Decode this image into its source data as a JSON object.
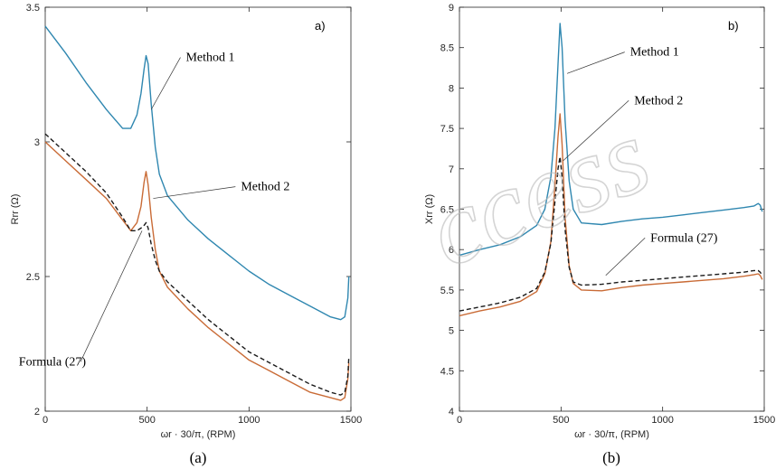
{
  "watermark": "ccess",
  "chart_data": [
    {
      "type": "line",
      "panel_tag": "a)",
      "caption": "(a)",
      "xlabel": "ωr · 30/π, (RPM)",
      "ylabel": "Rrr (Ω)",
      "xlim": [
        0,
        1500
      ],
      "ylim": [
        2,
        3.5
      ],
      "x_ticks": [
        0,
        500,
        1000,
        1500
      ],
      "y_ticks": [
        2,
        2.5,
        3,
        3.5
      ],
      "grid": false,
      "series": [
        {
          "name": "Method 1",
          "color": "#2f87b0",
          "dash": "solid",
          "points": [
            [
              0,
              3.43
            ],
            [
              100,
              3.33
            ],
            [
              200,
              3.22
            ],
            [
              300,
              3.12
            ],
            [
              380,
              3.05
            ],
            [
              420,
              3.05
            ],
            [
              450,
              3.1
            ],
            [
              470,
              3.18
            ],
            [
              485,
              3.27
            ],
            [
              495,
              3.32
            ],
            [
              505,
              3.29
            ],
            [
              520,
              3.14
            ],
            [
              540,
              2.98
            ],
            [
              560,
              2.88
            ],
            [
              600,
              2.8
            ],
            [
              700,
              2.71
            ],
            [
              800,
              2.64
            ],
            [
              900,
              2.58
            ],
            [
              1000,
              2.52
            ],
            [
              1100,
              2.47
            ],
            [
              1200,
              2.43
            ],
            [
              1300,
              2.39
            ],
            [
              1400,
              2.35
            ],
            [
              1450,
              2.34
            ],
            [
              1470,
              2.35
            ],
            [
              1485,
              2.42
            ],
            [
              1490,
              2.5
            ]
          ]
        },
        {
          "name": "Method 2",
          "color": "#c96b36",
          "dash": "solid",
          "points": [
            [
              0,
              3.0
            ],
            [
              100,
              2.93
            ],
            [
              200,
              2.86
            ],
            [
              300,
              2.79
            ],
            [
              380,
              2.71
            ],
            [
              420,
              2.67
            ],
            [
              450,
              2.7
            ],
            [
              470,
              2.76
            ],
            [
              485,
              2.85
            ],
            [
              495,
              2.89
            ],
            [
              505,
              2.84
            ],
            [
              520,
              2.72
            ],
            [
              540,
              2.6
            ],
            [
              560,
              2.52
            ],
            [
              600,
              2.46
            ],
            [
              700,
              2.38
            ],
            [
              800,
              2.31
            ],
            [
              900,
              2.25
            ],
            [
              1000,
              2.19
            ],
            [
              1100,
              2.15
            ],
            [
              1200,
              2.11
            ],
            [
              1300,
              2.07
            ],
            [
              1400,
              2.05
            ],
            [
              1450,
              2.04
            ],
            [
              1470,
              2.05
            ],
            [
              1485,
              2.12
            ],
            [
              1490,
              2.18
            ]
          ]
        },
        {
          "name": "Formula (27)",
          "color": "#1a1a1a",
          "dash": "dashed",
          "points": [
            [
              0,
              3.03
            ],
            [
              100,
              2.96
            ],
            [
              200,
              2.89
            ],
            [
              300,
              2.81
            ],
            [
              380,
              2.72
            ],
            [
              420,
              2.67
            ],
            [
              450,
              2.67
            ],
            [
              470,
              2.68
            ],
            [
              485,
              2.69
            ],
            [
              495,
              2.7
            ],
            [
              505,
              2.68
            ],
            [
              520,
              2.62
            ],
            [
              540,
              2.56
            ],
            [
              560,
              2.52
            ],
            [
              600,
              2.48
            ],
            [
              700,
              2.41
            ],
            [
              800,
              2.34
            ],
            [
              900,
              2.28
            ],
            [
              1000,
              2.22
            ],
            [
              1100,
              2.18
            ],
            [
              1200,
              2.14
            ],
            [
              1300,
              2.1
            ],
            [
              1400,
              2.07
            ],
            [
              1450,
              2.06
            ],
            [
              1470,
              2.07
            ],
            [
              1485,
              2.13
            ],
            [
              1490,
              2.2
            ]
          ]
        }
      ],
      "annotations": [
        {
          "text": "Method 1",
          "target": [
            520,
            3.12
          ],
          "text_at": [
            690,
            3.3
          ]
        },
        {
          "text": "Method 2",
          "target": [
            530,
            2.79
          ],
          "text_at": [
            960,
            2.82
          ]
        },
        {
          "text": "Formula (27)",
          "target": [
            475,
            2.67
          ],
          "text_at": [
            200,
            2.17
          ]
        }
      ]
    },
    {
      "type": "line",
      "panel_tag": "b)",
      "caption": "(b)",
      "xlabel": "ωr · 30/π, (RPM)",
      "ylabel": "Xrr (Ω)",
      "xlim": [
        0,
        1500
      ],
      "ylim": [
        4,
        9
      ],
      "x_ticks": [
        0,
        500,
        1000,
        1500
      ],
      "y_ticks": [
        4,
        4.5,
        5,
        5.5,
        6,
        6.5,
        7,
        7.5,
        8,
        8.5,
        9
      ],
      "grid": false,
      "series": [
        {
          "name": "Method 1",
          "color": "#2f87b0",
          "dash": "solid",
          "points": [
            [
              0,
              5.93
            ],
            [
              100,
              6.0
            ],
            [
              200,
              6.06
            ],
            [
              300,
              6.16
            ],
            [
              380,
              6.3
            ],
            [
              420,
              6.5
            ],
            [
              450,
              6.9
            ],
            [
              470,
              7.5
            ],
            [
              485,
              8.3
            ],
            [
              495,
              8.8
            ],
            [
              505,
              8.5
            ],
            [
              520,
              7.6
            ],
            [
              540,
              6.85
            ],
            [
              560,
              6.5
            ],
            [
              600,
              6.33
            ],
            [
              700,
              6.31
            ],
            [
              800,
              6.35
            ],
            [
              900,
              6.38
            ],
            [
              1000,
              6.4
            ],
            [
              1100,
              6.43
            ],
            [
              1200,
              6.46
            ],
            [
              1300,
              6.49
            ],
            [
              1400,
              6.52
            ],
            [
              1450,
              6.54
            ],
            [
              1470,
              6.57
            ],
            [
              1480,
              6.55
            ],
            [
              1490,
              6.47
            ]
          ]
        },
        {
          "name": "Method 2",
          "color": "#c96b36",
          "dash": "solid",
          "points": [
            [
              0,
              5.18
            ],
            [
              100,
              5.24
            ],
            [
              200,
              5.29
            ],
            [
              300,
              5.36
            ],
            [
              380,
              5.48
            ],
            [
              420,
              5.7
            ],
            [
              450,
              6.1
            ],
            [
              470,
              6.8
            ],
            [
              485,
              7.4
            ],
            [
              495,
              7.68
            ],
            [
              505,
              7.3
            ],
            [
              520,
              6.4
            ],
            [
              540,
              5.8
            ],
            [
              560,
              5.58
            ],
            [
              600,
              5.5
            ],
            [
              700,
              5.49
            ],
            [
              800,
              5.53
            ],
            [
              900,
              5.56
            ],
            [
              1000,
              5.58
            ],
            [
              1100,
              5.6
            ],
            [
              1200,
              5.62
            ],
            [
              1300,
              5.64
            ],
            [
              1400,
              5.67
            ],
            [
              1450,
              5.69
            ],
            [
              1470,
              5.7
            ],
            [
              1480,
              5.68
            ],
            [
              1490,
              5.63
            ]
          ]
        },
        {
          "name": "Formula (27)",
          "color": "#1a1a1a",
          "dash": "dashed",
          "points": [
            [
              0,
              5.24
            ],
            [
              100,
              5.29
            ],
            [
              200,
              5.34
            ],
            [
              300,
              5.41
            ],
            [
              380,
              5.52
            ],
            [
              420,
              5.72
            ],
            [
              450,
              6.08
            ],
            [
              470,
              6.6
            ],
            [
              485,
              7.0
            ],
            [
              495,
              7.15
            ],
            [
              505,
              6.9
            ],
            [
              520,
              6.25
            ],
            [
              540,
              5.78
            ],
            [
              560,
              5.6
            ],
            [
              600,
              5.56
            ],
            [
              700,
              5.57
            ],
            [
              800,
              5.6
            ],
            [
              900,
              5.62
            ],
            [
              1000,
              5.64
            ],
            [
              1100,
              5.66
            ],
            [
              1200,
              5.68
            ],
            [
              1300,
              5.7
            ],
            [
              1400,
              5.72
            ],
            [
              1450,
              5.74
            ],
            [
              1470,
              5.74
            ],
            [
              1480,
              5.72
            ],
            [
              1490,
              5.68
            ]
          ]
        }
      ],
      "annotations": [
        {
          "text": "Method 1",
          "target": [
            530,
            8.18
          ],
          "text_at": [
            840,
            8.4
          ]
        },
        {
          "text": "Method 2",
          "target": [
            510,
            7.1
          ],
          "text_at": [
            860,
            7.8
          ]
        },
        {
          "text": "Formula (27)",
          "target": [
            720,
            5.68
          ],
          "text_at": [
            940,
            6.1
          ]
        }
      ]
    }
  ]
}
